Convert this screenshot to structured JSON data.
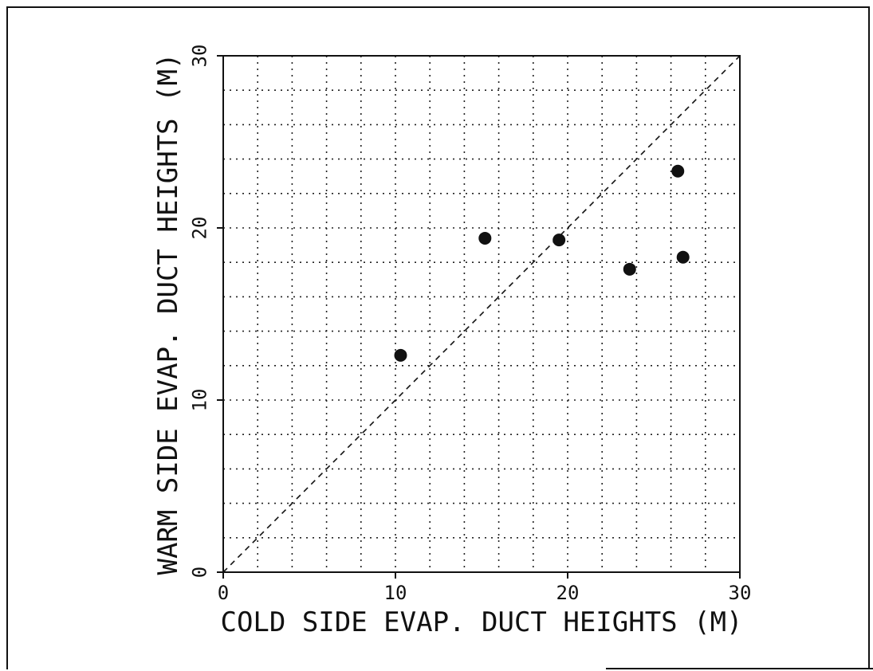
{
  "chart_data": {
    "type": "scatter",
    "title": "",
    "xlabel": "COLD SIDE EVAP. DUCT HEIGHTS (M)",
    "ylabel": "WARM SIDE EVAP. DUCT HEIGHTS (M)",
    "xlim": [
      0,
      30
    ],
    "ylim": [
      0,
      30
    ],
    "x_ticks": [
      "0",
      "10",
      "20",
      "30"
    ],
    "y_ticks": [
      "0",
      "10",
      "20",
      "30"
    ],
    "grid": true,
    "grid_step": 2,
    "reference_line": {
      "style": "dashed",
      "from": [
        0,
        0
      ],
      "to": [
        30,
        30
      ]
    },
    "points": [
      {
        "x": 10.3,
        "y": 12.6
      },
      {
        "x": 15.2,
        "y": 19.4
      },
      {
        "x": 19.5,
        "y": 19.3
      },
      {
        "x": 23.6,
        "y": 17.6
      },
      {
        "x": 26.4,
        "y": 23.3
      },
      {
        "x": 26.7,
        "y": 18.3
      }
    ],
    "colors": {
      "ink": "#111111",
      "background": "#ffffff"
    }
  }
}
